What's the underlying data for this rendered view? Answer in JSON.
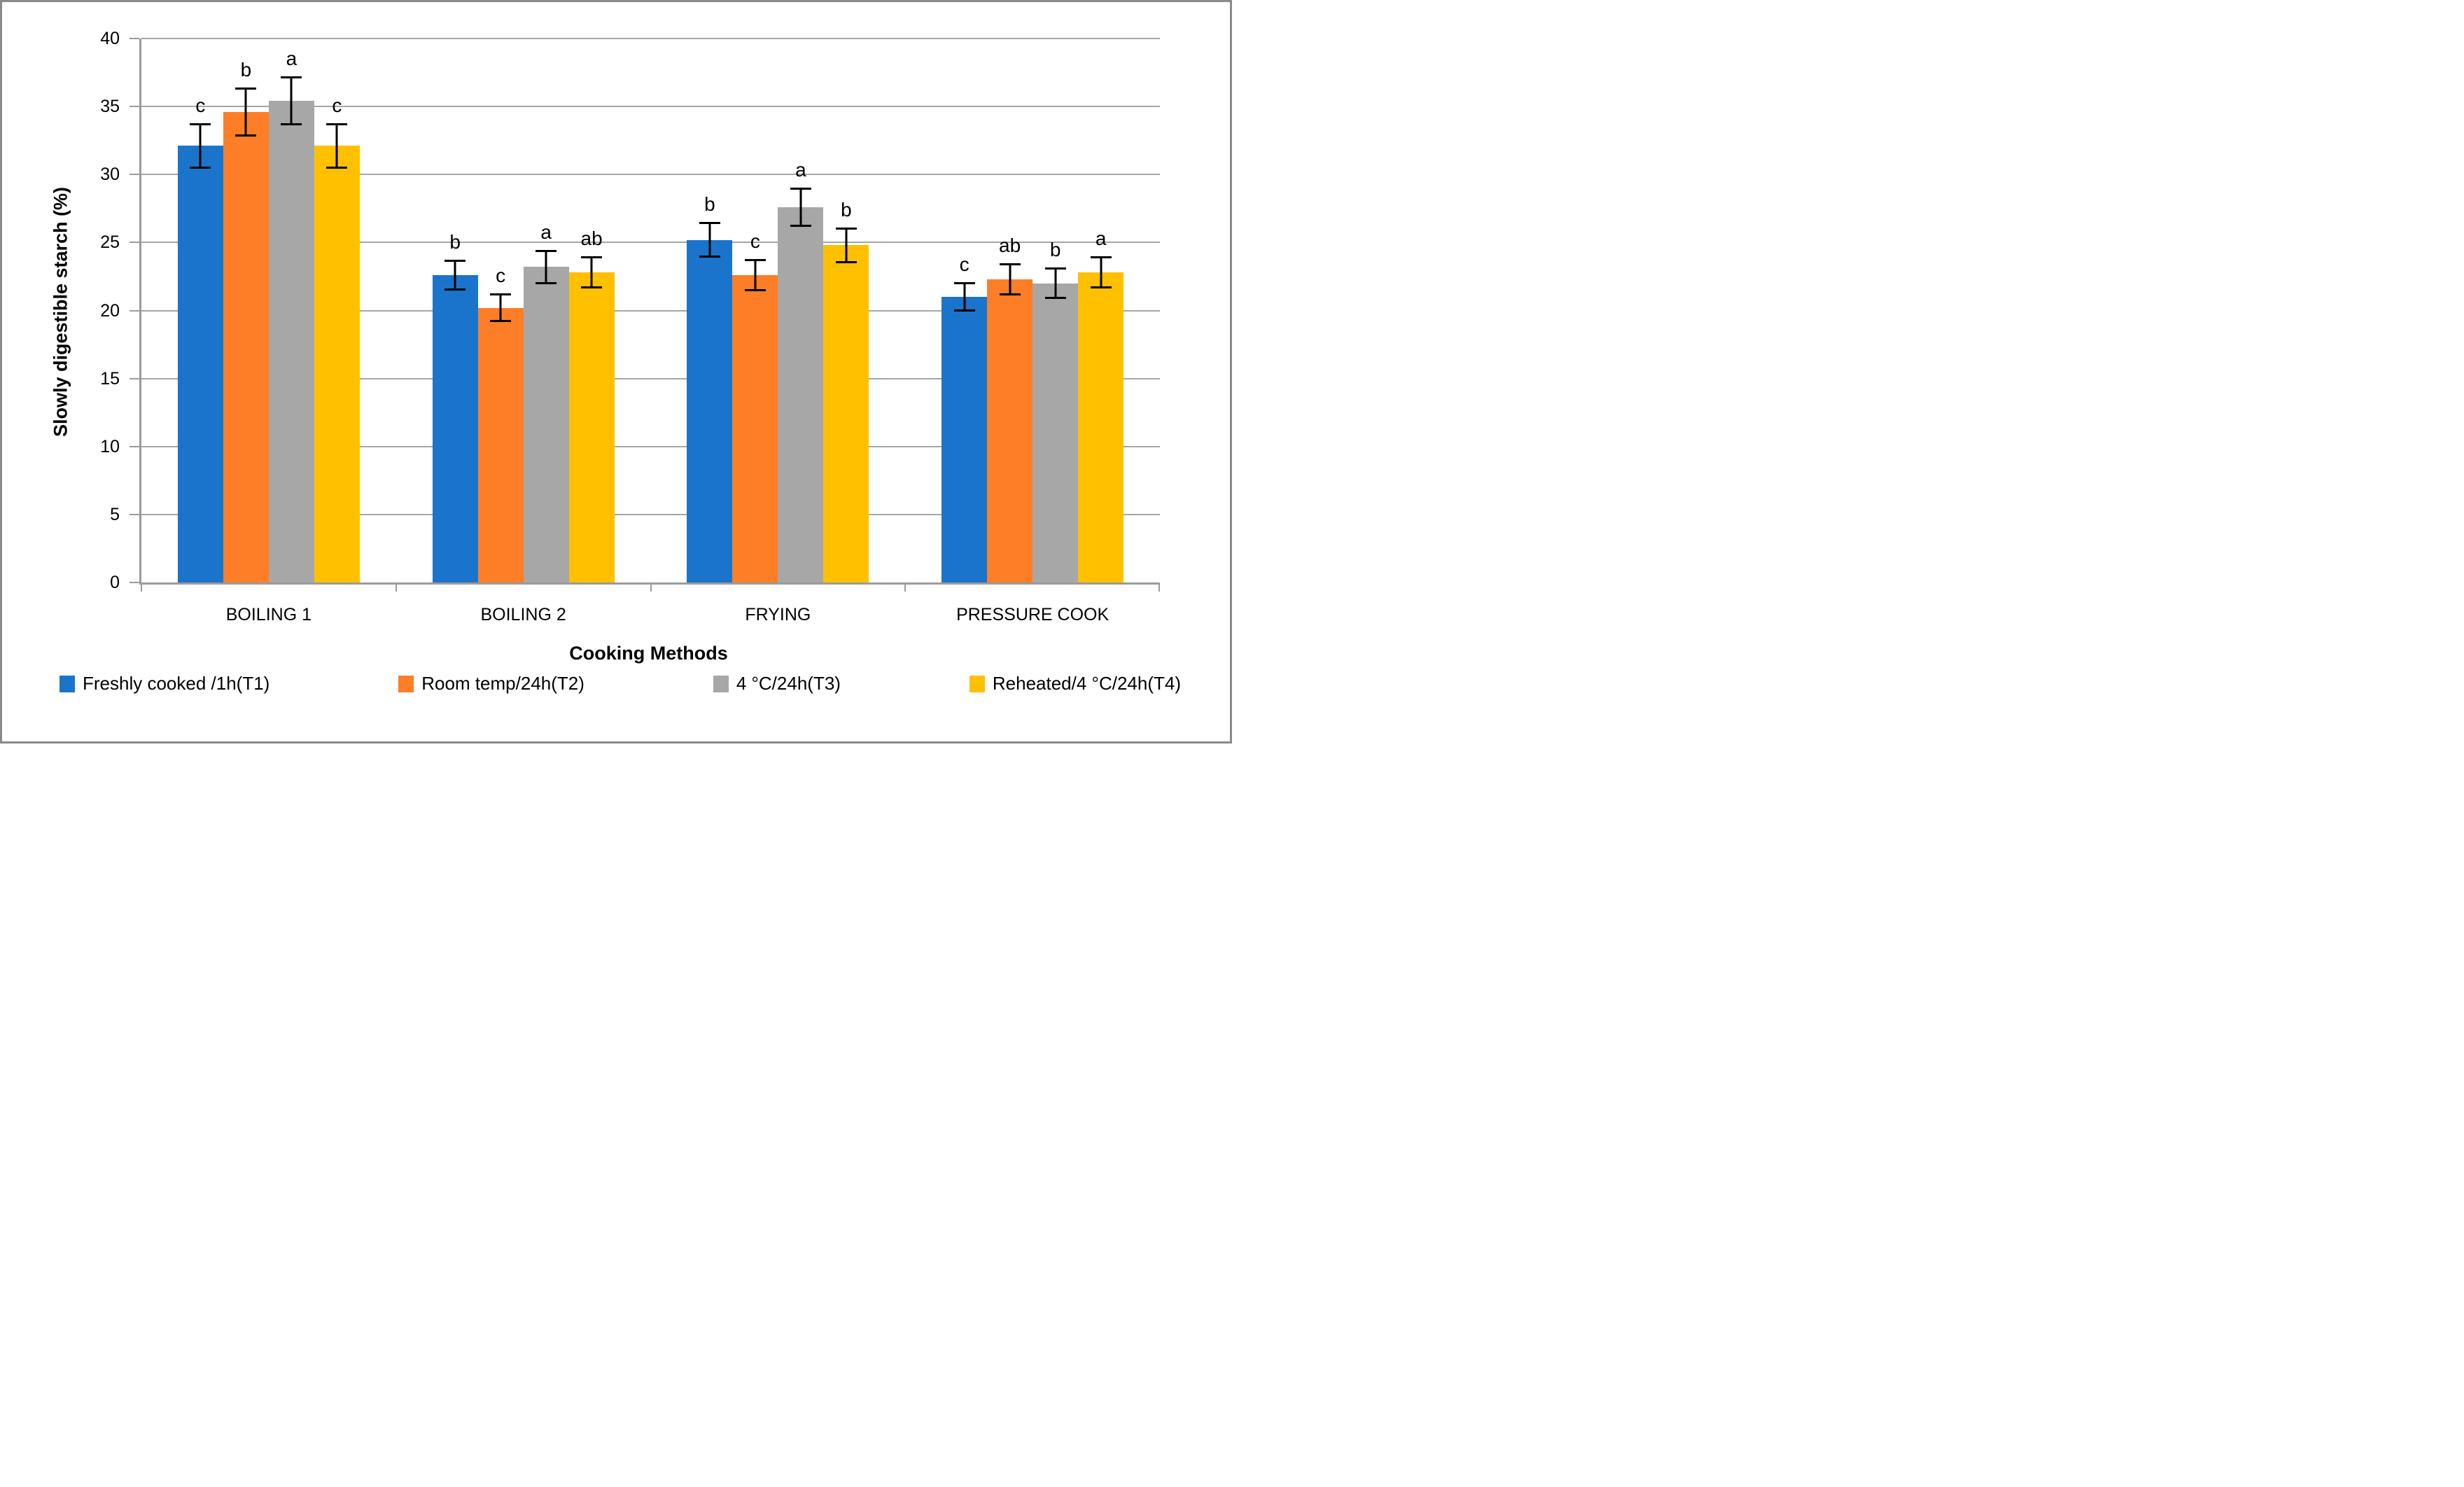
{
  "chart_data": {
    "type": "bar",
    "title": "",
    "xlabel": "Cooking Methods",
    "ylabel": "Slowly digestible starch (%)",
    "ylim": [
      0,
      40
    ],
    "yticks": [
      0,
      5,
      10,
      15,
      20,
      25,
      30,
      35,
      40
    ],
    "grid": true,
    "legend_position": "bottom",
    "categories": [
      "BOILING 1",
      "BOILING 2",
      "FRYING",
      "PRESSURE COOK"
    ],
    "series": [
      {
        "name": "Freshly cooked /1h(T1)",
        "color": "#1b74cb",
        "values": [
          32.1,
          22.6,
          25.2,
          21.0
        ],
        "errors": [
          1.6,
          1.1,
          1.25,
          1.05
        ],
        "letters": [
          "c",
          "b",
          "b",
          "c"
        ]
      },
      {
        "name": "Room temp/24h(T2)",
        "color": "#fd7e27",
        "values": [
          34.6,
          20.2,
          22.6,
          22.3
        ],
        "errors": [
          1.75,
          1.0,
          1.15,
          1.15
        ],
        "letters": [
          "b",
          "c",
          "c",
          "ab"
        ]
      },
      {
        "name": "4 °C/24h(T3)",
        "color": "#a7a7a7",
        "values": [
          35.4,
          23.2,
          27.6,
          22.0
        ],
        "errors": [
          1.75,
          1.2,
          1.4,
          1.1
        ],
        "letters": [
          "a",
          "a",
          "a",
          "b"
        ]
      },
      {
        "name": "Reheated/4 °C/24h(T4)",
        "color": "#ffc000",
        "values": [
          32.1,
          22.8,
          24.8,
          22.8
        ],
        "errors": [
          1.6,
          1.15,
          1.25,
          1.15
        ],
        "letters": [
          "c",
          "ab",
          "b",
          "a"
        ]
      }
    ],
    "colors": {
      "grid": "#a6a6a6",
      "axis": "#9b9b9b",
      "frame_border": "#8a8a8a",
      "error_bar": "#000000",
      "text": "#000000"
    }
  }
}
